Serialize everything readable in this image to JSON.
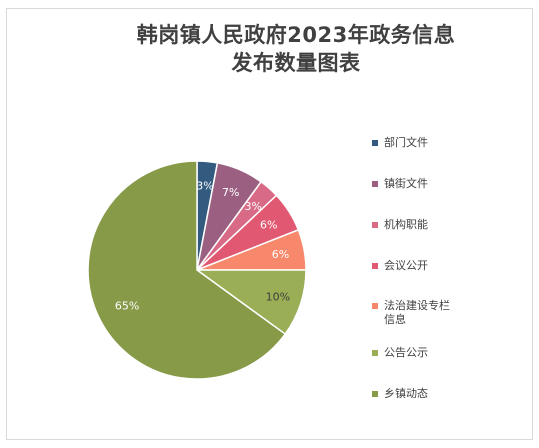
{
  "chart_data": {
    "type": "pie",
    "title_line1": "韩岗镇人民政府2023年政务信息",
    "title_line2": "发布数量图表",
    "slices": [
      {
        "name": "部门文件",
        "value": 3,
        "label": "3%",
        "color": "#335b80"
      },
      {
        "name": "镇街文件",
        "value": 7,
        "label": "7%",
        "color": "#9b5f82"
      },
      {
        "name": "机构职能",
        "value": 3,
        "label": "3%",
        "color": "#d96a86"
      },
      {
        "name": "会议公开",
        "value": 6,
        "label": "6%",
        "color": "#e05871"
      },
      {
        "name": "法治建设专栏信息",
        "value": 6,
        "label": "6%",
        "color": "#f7886c"
      },
      {
        "name": "公告公示",
        "value": 10,
        "label": "10%",
        "color": "#9aae55"
      },
      {
        "name": "乡镇动态",
        "value": 65,
        "label": "65%",
        "color": "#869a48"
      }
    ],
    "legend_position": "right"
  }
}
